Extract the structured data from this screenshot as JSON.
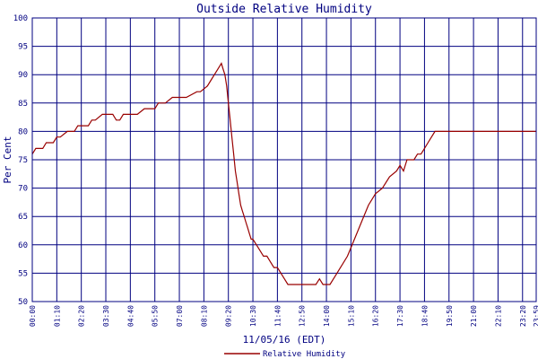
{
  "chart_data": {
    "type": "line",
    "title": "Outside Relative Humidity",
    "ylabel": "Per Cent",
    "xlabel": "11/05/16 (EDT)",
    "ylim": [
      50,
      100
    ],
    "y_ticks": [
      "50",
      "55",
      "60",
      "65",
      "70",
      "75",
      "80",
      "85",
      "90",
      "95",
      "100"
    ],
    "x_ticks": [
      "00:00",
      "01:10",
      "02:20",
      "03:30",
      "04:40",
      "05:50",
      "07:00",
      "08:10",
      "09:20",
      "10:30",
      "11:40",
      "12:50",
      "14:00",
      "15:10",
      "16:20",
      "17:30",
      "18:40",
      "19:50",
      "21:00",
      "22:10",
      "23:20",
      "23:59"
    ],
    "x_range_minutes": [
      0,
      1439
    ],
    "grid": true,
    "colors": {
      "line": "#990000",
      "grid": "#000080",
      "text": "#000080",
      "background": "#ffffff"
    },
    "series": [
      {
        "name": "Relative Humidity",
        "x_minutes": [
          0,
          10,
          20,
          30,
          40,
          60,
          70,
          80,
          100,
          120,
          130,
          150,
          160,
          170,
          180,
          200,
          210,
          230,
          240,
          250,
          260,
          280,
          300,
          320,
          330,
          350,
          360,
          380,
          400,
          420,
          440,
          470,
          480,
          500,
          510,
          520,
          530,
          540,
          545,
          550,
          555,
          560,
          565,
          570,
          575,
          580,
          585,
          590,
          595,
          600,
          605,
          610,
          615,
          620,
          625,
          630,
          640,
          650,
          660,
          670,
          680,
          690,
          700,
          710,
          720,
          730,
          740,
          750,
          760,
          770,
          780,
          790,
          800,
          810,
          820,
          830,
          840,
          850,
          860,
          870,
          880,
          900,
          920,
          940,
          960,
          980,
          1000,
          1020,
          1040,
          1050,
          1060,
          1070,
          1080,
          1090,
          1100,
          1110,
          1120,
          1130,
          1140,
          1150,
          1160,
          1170,
          1180,
          1190,
          1200,
          1210,
          1220,
          1230,
          1240,
          1250,
          1260,
          1270,
          1280,
          1290,
          1300,
          1310,
          1320,
          1330,
          1340,
          1350,
          1360,
          1370,
          1380,
          1390,
          1400,
          1410,
          1420,
          1430,
          1439
        ],
        "values": [
          76,
          77,
          77,
          77,
          78,
          78,
          79,
          79,
          80,
          80,
          81,
          81,
          81,
          82,
          82,
          83,
          83,
          83,
          82,
          82,
          83,
          83,
          83,
          84,
          84,
          84,
          85,
          85,
          86,
          86,
          86,
          87,
          87,
          88,
          89,
          90,
          91,
          92,
          91,
          90,
          88,
          85,
          82,
          79,
          76,
          73,
          71,
          69,
          67,
          66,
          65,
          64,
          63,
          62,
          61,
          61,
          60,
          59,
          58,
          58,
          57,
          56,
          56,
          55,
          54,
          53,
          53,
          53,
          53,
          53,
          53,
          53,
          53,
          53,
          54,
          53,
          53,
          53,
          54,
          55,
          56,
          58,
          61,
          64,
          67,
          69,
          70,
          72,
          73,
          74,
          73,
          75,
          75,
          75,
          76,
          76,
          77,
          78,
          79,
          80,
          80,
          80,
          80,
          80,
          80,
          80,
          80,
          80,
          80,
          80,
          80,
          80,
          80,
          80,
          80,
          80,
          80,
          80,
          80,
          80,
          80,
          80,
          80,
          80,
          80,
          80,
          80,
          80,
          80
        ]
      }
    ],
    "legend": {
      "position": "bottom-center",
      "label": "Relative Humidity"
    }
  }
}
